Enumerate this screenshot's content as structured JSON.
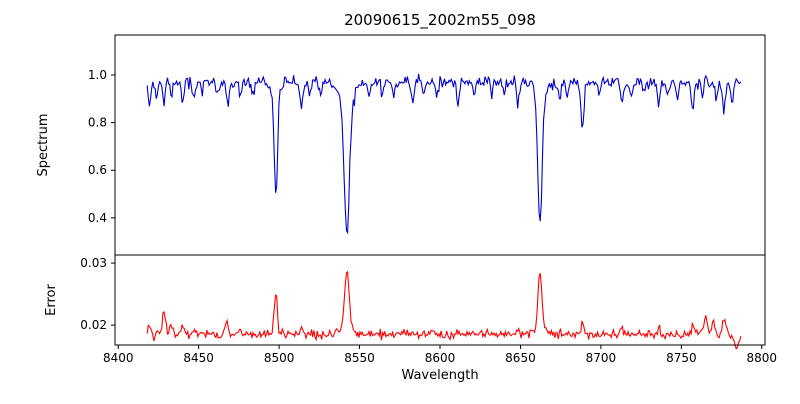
{
  "figure": {
    "background": "#ffffff"
  },
  "chart_data": {
    "type": "line",
    "title": "20090615_2002m55_098",
    "xlabel": "Wavelength",
    "x_start": 8418,
    "x_end": 8787,
    "sample_step": 0.7,
    "xlim": [
      8398,
      8802
    ],
    "x_ticks": [
      8400,
      8450,
      8500,
      8550,
      8600,
      8650,
      8700,
      8750,
      8800
    ],
    "x_tick_labels": [
      "8400",
      "8450",
      "8500",
      "8550",
      "8600",
      "8650",
      "8700",
      "8750",
      "8800"
    ],
    "legend": "none",
    "grid": false,
    "panels": [
      {
        "name": "spectrum",
        "ylabel": "Spectrum",
        "color": "#0000cc",
        "ylim": [
          0.244,
          1.168
        ],
        "y_ticks": [
          0.4,
          0.6,
          0.8,
          1.0
        ],
        "y_tick_labels": [
          "0.4",
          "0.6",
          "0.8",
          "1.0"
        ],
        "continuum": 0.97,
        "noise_sigma": 0.012,
        "seed": 7,
        "absorption_lines": [
          [
            8498.0,
            0.44,
            1.0
          ],
          [
            8498.0,
            0.05,
            2.5
          ],
          [
            8542.1,
            0.55,
            1.6
          ],
          [
            8542.1,
            0.09,
            4.0
          ],
          [
            8662.1,
            0.52,
            1.3
          ],
          [
            8662.1,
            0.08,
            3.0
          ],
          [
            8419.5,
            0.09,
            0.8
          ],
          [
            8424.0,
            0.07,
            0.7
          ],
          [
            8428.5,
            0.09,
            0.8
          ],
          [
            8433.0,
            0.06,
            0.7
          ],
          [
            8440.0,
            0.1,
            0.8
          ],
          [
            8447.0,
            0.08,
            0.7
          ],
          [
            8452.0,
            0.05,
            0.7
          ],
          [
            8462.0,
            0.05,
            0.7
          ],
          [
            8468.0,
            0.11,
            0.8
          ],
          [
            8476.0,
            0.06,
            0.7
          ],
          [
            8484.0,
            0.05,
            0.7
          ],
          [
            8514.0,
            0.11,
            0.9
          ],
          [
            8519.0,
            0.06,
            0.7
          ],
          [
            8526.0,
            0.05,
            0.7
          ],
          [
            8556.0,
            0.06,
            0.7
          ],
          [
            8564.0,
            0.05,
            0.7
          ],
          [
            8571.0,
            0.06,
            0.7
          ],
          [
            8583.0,
            0.09,
            0.8
          ],
          [
            8590.0,
            0.05,
            0.7
          ],
          [
            8598.0,
            0.07,
            0.7
          ],
          [
            8611.0,
            0.09,
            0.8
          ],
          [
            8621.0,
            0.07,
            0.7
          ],
          [
            8632.0,
            0.05,
            0.7
          ],
          [
            8640.0,
            0.06,
            0.7
          ],
          [
            8648.5,
            0.09,
            0.8
          ],
          [
            8674.5,
            0.08,
            0.8
          ],
          [
            8679.0,
            0.06,
            0.7
          ],
          [
            8688.5,
            0.19,
            1.0
          ],
          [
            8699.0,
            0.05,
            0.7
          ],
          [
            8713.0,
            0.1,
            0.8
          ],
          [
            8718.5,
            0.07,
            0.7
          ],
          [
            8727.0,
            0.05,
            0.7
          ],
          [
            8736.0,
            0.1,
            0.8
          ],
          [
            8742.0,
            0.06,
            0.7
          ],
          [
            8747.5,
            0.07,
            0.7
          ],
          [
            8757.0,
            0.11,
            0.8
          ],
          [
            8763.0,
            0.07,
            0.7
          ],
          [
            8772.0,
            0.06,
            0.7
          ],
          [
            8776.5,
            0.13,
            0.9
          ],
          [
            8781.5,
            0.09,
            0.8
          ]
        ]
      },
      {
        "name": "error",
        "ylabel": "Error",
        "color": "#ff0000",
        "ylim": [
          0.0168,
          0.0313
        ],
        "y_ticks": [
          0.02,
          0.03
        ],
        "y_tick_labels": [
          "0.02",
          "0.03"
        ],
        "baseline": 0.0185,
        "noise_sigma": 0.00035,
        "seed": 1234,
        "bumps": [
          [
            8419.5,
            0.0012,
            0.8
          ],
          [
            8428.5,
            0.0035,
            1.0
          ],
          [
            8433.0,
            0.0012,
            0.8
          ],
          [
            8440.0,
            0.0015,
            0.8
          ],
          [
            8447.0,
            0.001,
            0.8
          ],
          [
            8467.5,
            0.0022,
            0.9
          ],
          [
            8476.0,
            0.0008,
            0.8
          ],
          [
            8498.0,
            0.0068,
            1.0
          ],
          [
            8514.0,
            0.0015,
            0.8
          ],
          [
            8542.1,
            0.0095,
            1.3
          ],
          [
            8542.1,
            0.0012,
            4.0
          ],
          [
            8583.0,
            0.0008,
            0.8
          ],
          [
            8611.0,
            0.0008,
            0.8
          ],
          [
            8648.5,
            0.0008,
            0.8
          ],
          [
            8662.1,
            0.0092,
            1.2
          ],
          [
            8662.1,
            0.001,
            3.5
          ],
          [
            8688.5,
            0.0018,
            0.9
          ],
          [
            8713.0,
            0.001,
            0.8
          ],
          [
            8736.0,
            0.001,
            0.8
          ],
          [
            8757.0,
            0.0012,
            0.8
          ],
          [
            8765.0,
            0.0028,
            1.0
          ],
          [
            8770.0,
            0.002,
            0.9
          ],
          [
            8776.5,
            0.0028,
            1.0
          ],
          [
            8784.0,
            -0.0018,
            2.0
          ]
        ]
      }
    ]
  }
}
